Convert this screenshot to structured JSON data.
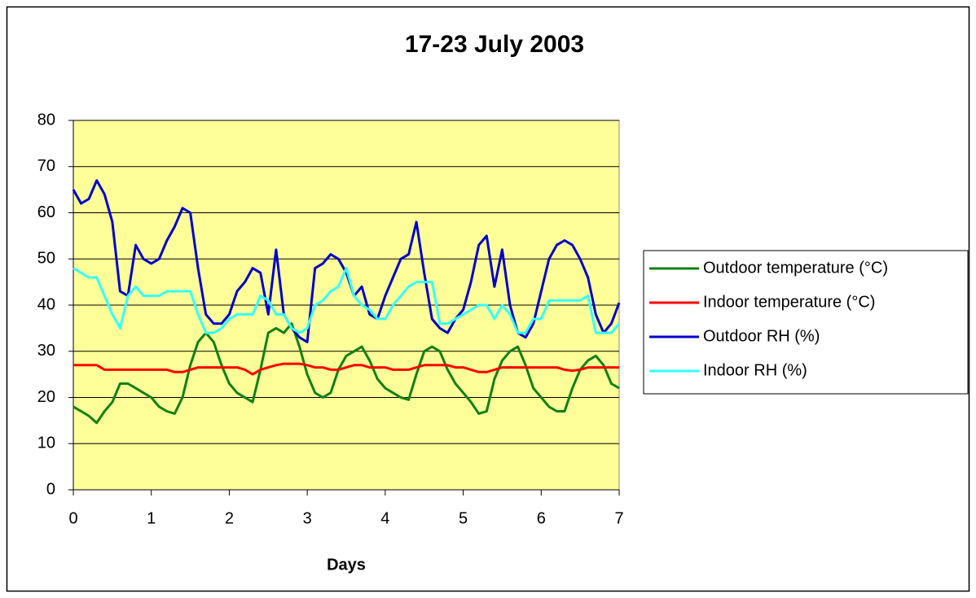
{
  "chart_data": {
    "type": "line",
    "title": "17-23 July 2003",
    "xlabel": "Days",
    "x": [
      0,
      0.1,
      0.2,
      0.3,
      0.4,
      0.5,
      0.6,
      0.7,
      0.8,
      0.9,
      1,
      1.1,
      1.2,
      1.3,
      1.4,
      1.5,
      1.6,
      1.7,
      1.8,
      1.9,
      2,
      2.1,
      2.2,
      2.3,
      2.4,
      2.5,
      2.6,
      2.7,
      2.8,
      2.9,
      3,
      3.1,
      3.2,
      3.3,
      3.4,
      3.5,
      3.6,
      3.7,
      3.8,
      3.9,
      4,
      4.1,
      4.2,
      4.3,
      4.4,
      4.5,
      4.6,
      4.7,
      4.8,
      4.9,
      5,
      5.1,
      5.2,
      5.3,
      5.4,
      5.5,
      5.6,
      5.7,
      5.8,
      5.9,
      6,
      6.1,
      6.2,
      6.3,
      6.4,
      6.5,
      6.6,
      6.7,
      6.8,
      6.9,
      7
    ],
    "series": [
      {
        "name": "Outdoor temperature (°C)",
        "color": "#118011",
        "values": [
          18,
          17,
          16,
          14.5,
          17,
          19,
          23,
          23,
          22,
          21,
          20,
          18,
          17,
          16.5,
          20,
          27,
          32,
          34,
          32,
          27,
          23,
          21,
          20,
          19,
          26,
          34,
          35,
          34,
          36,
          31,
          25,
          21,
          20,
          21,
          26,
          29,
          30,
          31,
          28,
          24,
          22,
          21,
          20,
          19.5,
          25,
          30,
          31,
          30,
          26,
          23,
          21,
          19,
          16.5,
          17,
          24,
          28,
          30,
          31,
          27,
          22,
          20,
          18,
          17,
          17,
          22,
          26,
          28,
          29,
          27,
          23,
          22
        ]
      },
      {
        "name": "Indoor temperature (°C)",
        "color": "#ff0000",
        "values": [
          27,
          27,
          27,
          27,
          26,
          26,
          26,
          26,
          26,
          26,
          26,
          26,
          26,
          25.5,
          25.5,
          26,
          26.5,
          26.5,
          26.5,
          26.5,
          26.5,
          26.5,
          26,
          25,
          26,
          26.5,
          27,
          27.3,
          27.3,
          27.3,
          27,
          26.5,
          26.5,
          26,
          26,
          26.5,
          27,
          27,
          26.5,
          26.5,
          26.5,
          26,
          26,
          26,
          26.5,
          27,
          27,
          27,
          27,
          26.5,
          26.5,
          26,
          25.5,
          25.5,
          26,
          26.5,
          26.5,
          26.5,
          26.5,
          26.5,
          26.5,
          26.5,
          26.5,
          26,
          25.8,
          26,
          26.5,
          26.5,
          26.5,
          26.5,
          26.5
        ]
      },
      {
        "name": "Outdoor RH (%)",
        "color": "#0000cc",
        "values": [
          65,
          62,
          63,
          67,
          64,
          58,
          43,
          42,
          53,
          50,
          49,
          50,
          54,
          57,
          61,
          60,
          48,
          38,
          36,
          36,
          38,
          43,
          45,
          48,
          47,
          38,
          52,
          38,
          35,
          33,
          32,
          48,
          49,
          51,
          50,
          47,
          42,
          44,
          38,
          37,
          42,
          46,
          50,
          51,
          58,
          47,
          37,
          35,
          34,
          37,
          39,
          45,
          53,
          55,
          44,
          52,
          40,
          34,
          33,
          36,
          43,
          50,
          53,
          54,
          53,
          50,
          46,
          38,
          34,
          36,
          40.5
        ]
      },
      {
        "name": "Indoor RH (%)",
        "color": "#33ffff",
        "values": [
          48,
          47,
          46,
          46,
          42,
          38,
          35,
          42,
          44,
          42,
          42,
          42,
          43,
          43,
          43,
          43,
          38,
          34,
          34,
          35,
          37,
          38,
          38,
          38,
          42,
          41,
          38,
          38,
          35,
          34,
          35,
          40,
          41,
          43,
          44,
          48,
          42,
          40,
          39,
          37,
          37,
          40,
          42,
          44,
          45,
          45,
          45,
          36,
          36,
          37,
          38,
          39,
          40,
          40,
          37,
          40,
          38,
          34,
          34,
          37,
          37,
          41,
          41,
          41,
          41,
          41,
          42,
          34,
          34,
          34,
          36
        ]
      }
    ],
    "xlim": [
      0,
      7
    ],
    "xticks": [
      0,
      1,
      2,
      3,
      4,
      5,
      6,
      7
    ],
    "ylim": [
      0,
      80
    ],
    "yticks": [
      0,
      10,
      20,
      30,
      40,
      50,
      60,
      70,
      80
    ],
    "grid": true,
    "plot_background": "#ffff99",
    "legend": "right"
  }
}
